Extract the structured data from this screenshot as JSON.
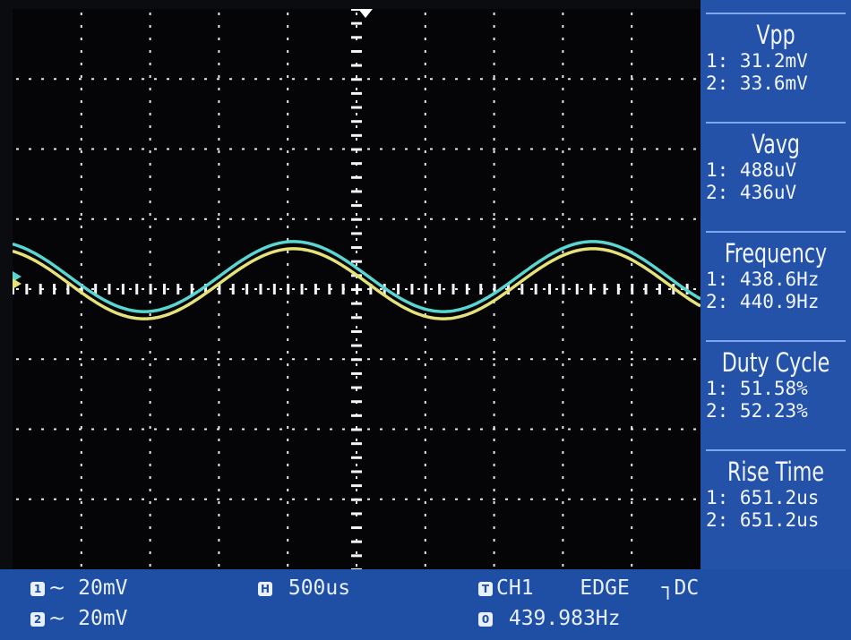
{
  "measurements": [
    {
      "title": "Vpp",
      "ch1": "1: 31.2mV",
      "ch2": "2: 33.6mV"
    },
    {
      "title": "Vavg",
      "ch1": "1: 488uV",
      "ch2": "2: 436uV"
    },
    {
      "title": "Frequency",
      "ch1": "1: 438.6Hz",
      "ch2": "2: 440.9Hz"
    },
    {
      "title": "Duty Cycle",
      "ch1": "1: 51.58%",
      "ch2": "2: 52.23%"
    },
    {
      "title": "Rise Time",
      "ch1": "1: 651.2us",
      "ch2": "2: 651.2us"
    }
  ],
  "status_bar": {
    "ch1_badge": "1",
    "ch1_scale": "20mV",
    "ch2_badge": "2",
    "ch2_scale": "20mV",
    "coupling_symbol": "~",
    "timebase_badge": "H",
    "timebase": "500us",
    "trigger_badge": "T",
    "trigger_source": "CH1",
    "trigger_mode": "EDGE",
    "trigger_coupling": "DC",
    "counter_badge": "0",
    "trigger_freq": "439.983Hz"
  },
  "colors": {
    "ch1": "#e6e27a",
    "ch2": "#5ad6d0",
    "sidebar_bg": "#2452a8",
    "statusbar_bg": "#1f4fa4"
  },
  "waveforms": {
    "ch1": {
      "cycles_visible": 2.3,
      "phase": 0.0,
      "amplitude": 0.5,
      "offset": 0.6
    },
    "ch2": {
      "cycles_visible": 2.3,
      "phase": 0.0,
      "amplitude": 0.5,
      "offset": 0.5
    }
  }
}
